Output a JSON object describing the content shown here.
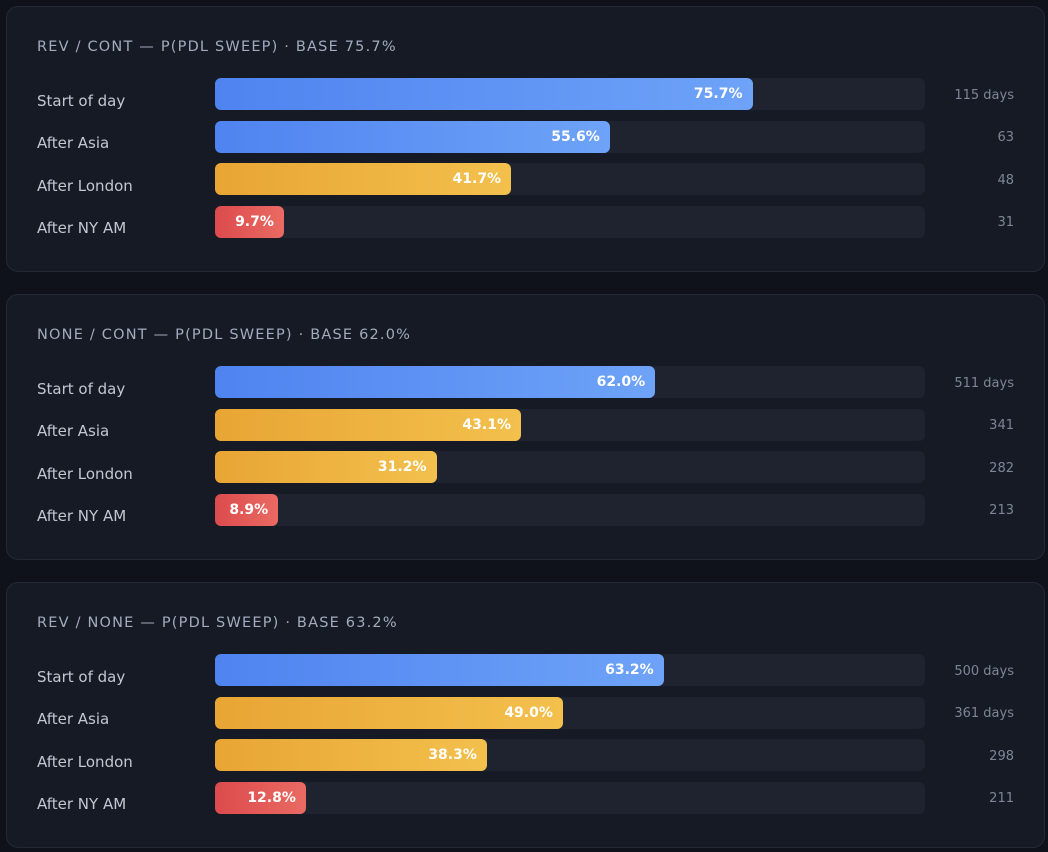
{
  "colors": {
    "background": "#0f121b",
    "panel": "#161a25",
    "track": "#1f2330",
    "blue": "#5b8ef2",
    "yellow": "#efb43f",
    "red": "#e05553"
  },
  "chart_data": [
    {
      "type": "bar",
      "orientation": "horizontal",
      "title": "REV / CONT — P(PDL SWEEP) · BASE 75.7%",
      "xlim": [
        0,
        100
      ],
      "categories": [
        "Start of day",
        "After Asia",
        "After London",
        "After NY AM"
      ],
      "values": [
        75.7,
        55.6,
        41.7,
        9.7
      ],
      "value_labels": [
        "75.7%",
        "55.6%",
        "41.7%",
        "9.7%"
      ],
      "counts": [
        "115 days",
        "63",
        "48",
        "31"
      ],
      "bar_colors": [
        "blue",
        "blue",
        "yellow",
        "red"
      ]
    },
    {
      "type": "bar",
      "orientation": "horizontal",
      "title": "NONE / CONT — P(PDL SWEEP) · BASE 62.0%",
      "xlim": [
        0,
        100
      ],
      "categories": [
        "Start of day",
        "After Asia",
        "After London",
        "After NY AM"
      ],
      "values": [
        62.0,
        43.1,
        31.2,
        8.9
      ],
      "value_labels": [
        "62.0%",
        "43.1%",
        "31.2%",
        "8.9%"
      ],
      "counts": [
        "511 days",
        "341",
        "282",
        "213"
      ],
      "bar_colors": [
        "blue",
        "yellow",
        "yellow",
        "red"
      ]
    },
    {
      "type": "bar",
      "orientation": "horizontal",
      "title": "REV / NONE — P(PDL SWEEP) · BASE 63.2%",
      "xlim": [
        0,
        100
      ],
      "categories": [
        "Start of day",
        "After Asia",
        "After London",
        "After NY AM"
      ],
      "values": [
        63.2,
        49.0,
        38.3,
        12.8
      ],
      "value_labels": [
        "63.2%",
        "49.0%",
        "38.3%",
        "12.8%"
      ],
      "counts": [
        "500 days",
        "361 days",
        "298",
        "211"
      ],
      "bar_colors": [
        "blue",
        "yellow",
        "yellow",
        "red"
      ]
    }
  ]
}
